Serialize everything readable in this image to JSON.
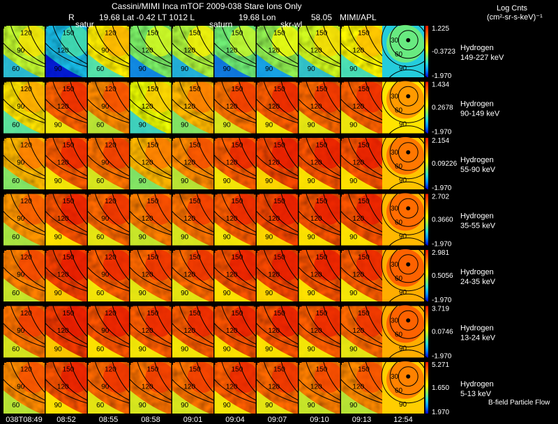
{
  "header": {
    "title": "Cassini/MIMI Inca mTOF  2009-038   Stare   Ions Only",
    "meta_r": "R",
    "meta_lat": "19.68 Lat -0.42 LT 1012 L",
    "meta_lon": "19.68 Lon",
    "meta_val": "58.05",
    "meta_org": "MIMI/APL",
    "units_title": "Log Cnts",
    "units_sub": "(cm²-sr-s-keV)⁻¹"
  },
  "overlay_labels": {
    "label_a": "satur",
    "label_b": "saturn",
    "label_c": "skr-wl"
  },
  "footer_note": "B-field Particle Flow",
  "chart_data": {
    "type": "heatmap",
    "title": "Cassini/MIMI Inca mTOF 2009-038 Stare Ions Only",
    "x_tick_labels": [
      "038T08:49",
      "08:52",
      "08:55",
      "08:58",
      "09:01",
      "09:04",
      "09:07",
      "09:10",
      "09:13",
      "12:54"
    ],
    "contour_labels": [
      [
        "120",
        "90",
        "60"
      ],
      [
        "150",
        "120",
        "90"
      ],
      [
        "120",
        "90",
        "60"
      ],
      [
        "150",
        "120",
        "90"
      ],
      [
        "150",
        "120",
        "90"
      ],
      [
        "150",
        "120",
        "90"
      ],
      [
        "150",
        "120",
        "90"
      ],
      [
        "150",
        "120",
        "90"
      ],
      [
        "150",
        "120",
        "90"
      ]
    ],
    "polar_contour_labels": [
      "30",
      "60",
      "90"
    ],
    "colorscale": [
      "#0000cc",
      "#0090ff",
      "#30e0d0",
      "#80f060",
      "#ffff00",
      "#ffb000",
      "#ff6000",
      "#e81800"
    ],
    "rows": [
      {
        "species": "Hydrogen",
        "energy": "149-227 keV",
        "cmax": "1.225",
        "cmid": "-0.3723",
        "cmin": "-1.970",
        "intensity": [
          0.5,
          0.22,
          0.6,
          0.42,
          0.48,
          0.4,
          0.45,
          0.52,
          0.58,
          0.35
        ]
      },
      {
        "species": "Hydrogen",
        "energy": "90-149 keV",
        "cmax": "1.434",
        "cmid": "0.2678",
        "cmin": "-1.970",
        "intensity": [
          0.62,
          0.85,
          0.78,
          0.55,
          0.7,
          0.82,
          0.86,
          0.84,
          0.85,
          0.72
        ]
      },
      {
        "species": "Hydrogen",
        "energy": "55-90 keV",
        "cmax": "2.154",
        "cmid": "0.09226",
        "cmin": "-1.970",
        "intensity": [
          0.7,
          0.86,
          0.82,
          0.7,
          0.78,
          0.86,
          0.9,
          0.88,
          0.88,
          0.78
        ]
      },
      {
        "species": "Hydrogen",
        "energy": "35-55 keV",
        "cmax": "2.702",
        "cmid": "0.3660",
        "cmin": "-1.970",
        "intensity": [
          0.76,
          0.88,
          0.84,
          0.8,
          0.82,
          0.86,
          0.9,
          0.88,
          0.88,
          0.8
        ]
      },
      {
        "species": "Hydrogen",
        "energy": "24-35 keV",
        "cmax": "2.981",
        "cmid": "0.5056",
        "cmin": "-1.970",
        "intensity": [
          0.8,
          0.92,
          0.86,
          0.84,
          0.84,
          0.88,
          0.9,
          0.88,
          0.86,
          0.82
        ]
      },
      {
        "species": "Hydrogen",
        "energy": "13-24 keV",
        "cmax": "3.719",
        "cmid": "0.0746",
        "cmin": "-1.970",
        "intensity": [
          0.82,
          0.93,
          0.88,
          0.86,
          0.86,
          0.88,
          0.88,
          0.86,
          0.84,
          0.82
        ]
      },
      {
        "species": "Hydrogen",
        "energy": "5-13 keV",
        "cmax": "5.271",
        "cmid": "1.650",
        "cmin": "1.970",
        "intensity": [
          0.78,
          0.88,
          0.84,
          0.82,
          0.82,
          0.86,
          0.84,
          0.8,
          0.78,
          0.76
        ]
      }
    ]
  }
}
